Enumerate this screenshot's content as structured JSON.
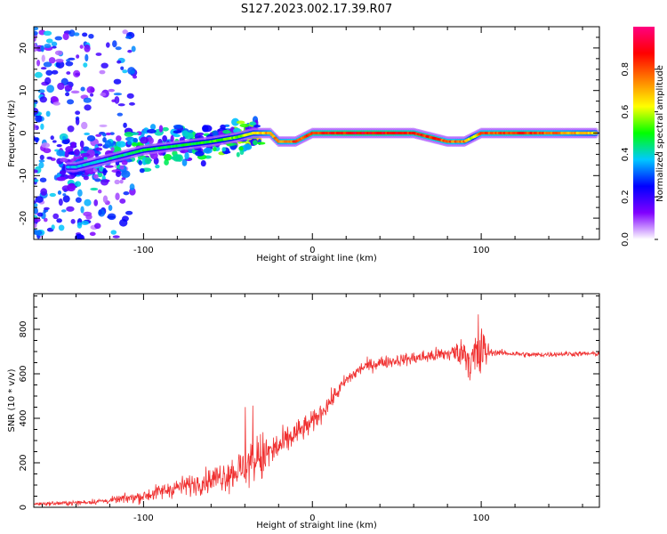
{
  "title": "S127.2023.002.17.39.R07",
  "chart_data": [
    {
      "type": "heatmap",
      "xlabel": "Height of straight line (km)",
      "ylabel": "Frequency (Hz)",
      "xlim": [
        -165,
        170
      ],
      "ylim": [
        -25,
        25
      ],
      "x_ticks": [
        -100,
        0,
        100
      ],
      "y_ticks": [
        -20,
        -10,
        0,
        10,
        20
      ],
      "colorbar": {
        "label": "Normalized spectral amplitude",
        "range": [
          0,
          1
        ],
        "ticks": [
          "0.0",
          "0.2",
          "0.4",
          "0.6",
          "0.8"
        ],
        "colors": [
          "#ffffff",
          "#8000ff",
          "#0000ff",
          "#00c8ff",
          "#00ff00",
          "#ffff00",
          "#ff8000",
          "#ff0000",
          "#ff0080"
        ]
      },
      "ridge": {
        "x": [
          -140,
          -120,
          -100,
          -80,
          -60,
          -45,
          -35,
          -25,
          -20,
          -10,
          0,
          20,
          40,
          60,
          70,
          80,
          90,
          95,
          100,
          120,
          140,
          170
        ],
        "frequency": [
          -8,
          -6,
          -4,
          -3,
          -2,
          -1,
          0,
          0,
          -2,
          -2,
          0,
          0,
          0,
          0,
          -1,
          -2,
          -2,
          -1,
          0,
          0,
          0,
          0
        ],
        "amplitude": [
          0.4,
          0.45,
          0.5,
          0.5,
          0.55,
          0.6,
          0.65,
          0.8,
          0.8,
          0.85,
          0.9,
          0.95,
          0.95,
          0.9,
          0.9,
          0.85,
          0.8,
          0.6,
          0.85,
          0.9,
          0.85,
          0.7
        ]
      }
    },
    {
      "type": "line",
      "xlabel": "Height of straight line (km)",
      "ylabel": "SNR (10 * v/v)",
      "xlim": [
        -165,
        170
      ],
      "ylim": [
        0,
        960
      ],
      "x_ticks": [
        -100,
        0,
        100
      ],
      "y_ticks": [
        0,
        200,
        400,
        600,
        800
      ],
      "color": "#f03030",
      "trend": {
        "x": [
          -165,
          -140,
          -120,
          -100,
          -90,
          -80,
          -70,
          -60,
          -50,
          -40,
          -30,
          -20,
          -10,
          0,
          10,
          20,
          30,
          40,
          60,
          80,
          90,
          95,
          100,
          110,
          130,
          150,
          170
        ],
        "y": [
          15,
          20,
          30,
          50,
          70,
          90,
          105,
          125,
          150,
          180,
          220,
          270,
          330,
          380,
          470,
          570,
          630,
          650,
          670,
          690,
          700,
          650,
          700,
          695,
          685,
          690,
          690
        ]
      },
      "noise": {
        "x": [
          -165,
          -120,
          -90,
          -60,
          -40,
          -30,
          -20,
          -5,
          20,
          50,
          80,
          90,
          95,
          99,
          102,
          106,
          170
        ],
        "y": [
          8,
          15,
          40,
          60,
          110,
          130,
          80,
          60,
          35,
          30,
          40,
          70,
          150,
          230,
          100,
          15,
          12
        ]
      }
    }
  ]
}
